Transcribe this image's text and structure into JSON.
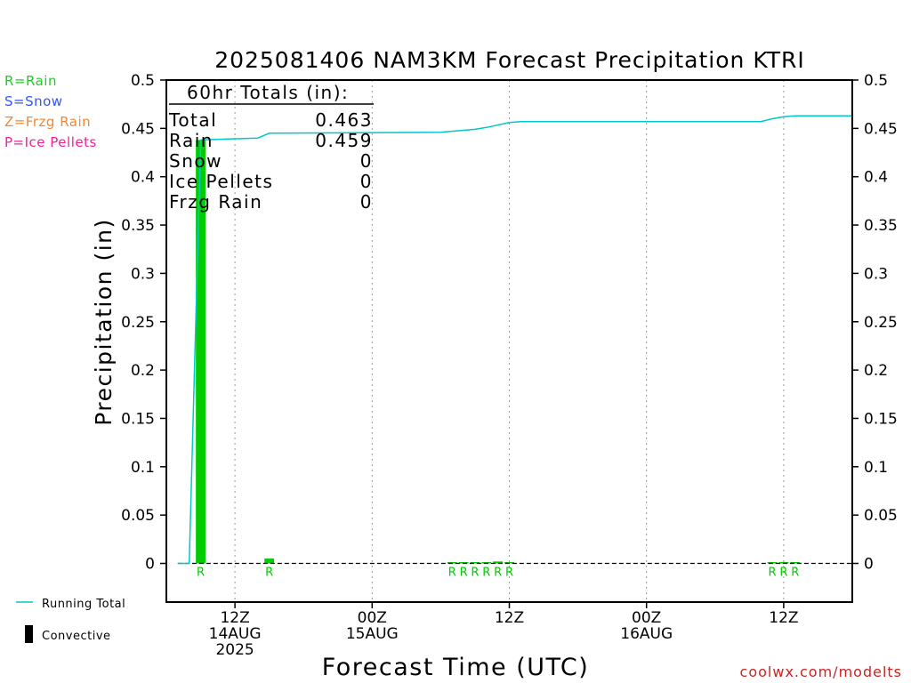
{
  "chart_data": {
    "type": "bar",
    "title": "2025081406 NAM3KM Forecast Precipitation KTRI",
    "xlabel": "Forecast Time (UTC)",
    "ylabel": "Precipitation (in)",
    "ylim": [
      -0.04,
      0.5
    ],
    "yticks": [
      0,
      0.05,
      0.1,
      0.15,
      0.2,
      0.25,
      0.3,
      0.35,
      0.4,
      0.45,
      0.5
    ],
    "ytick_labels": [
      "0",
      "0.05",
      "0.1",
      "0.15",
      "0.2",
      "0.25",
      "0.3",
      "0.35",
      "0.4",
      "0.45",
      "0.5"
    ],
    "xlim": [
      6,
      66
    ],
    "xticks": [
      {
        "hour": 12,
        "lines": [
          "12Z",
          "14AUG",
          "2025"
        ]
      },
      {
        "hour": 24,
        "lines": [
          "00Z",
          "15AUG"
        ]
      },
      {
        "hour": 36,
        "lines": [
          "12Z"
        ]
      },
      {
        "hour": 48,
        "lines": [
          "00Z",
          "16AUG"
        ]
      },
      {
        "hour": 60,
        "lines": [
          "12Z"
        ]
      }
    ],
    "grid": "dotted vertical at tick hours",
    "bar_color": "#00cc00",
    "running_total_color": "#00c8c8",
    "hourly_precip": [
      {
        "hour": 9,
        "value": 0.438,
        "ptype": "R"
      },
      {
        "hour": 15,
        "value": 0.005,
        "ptype": "R"
      },
      {
        "hour": 31,
        "value": 0.0005,
        "ptype": "R"
      },
      {
        "hour": 32,
        "value": 0.0005,
        "ptype": "R"
      },
      {
        "hour": 33,
        "value": 0.0008,
        "ptype": "R"
      },
      {
        "hour": 34,
        "value": 0.001,
        "ptype": "R"
      },
      {
        "hour": 35,
        "value": 0.002,
        "ptype": "R"
      },
      {
        "hour": 36,
        "value": 0.001,
        "ptype": "R"
      },
      {
        "hour": 59,
        "value": 0.001,
        "ptype": "R"
      },
      {
        "hour": 60,
        "value": 0.0015,
        "ptype": "R"
      },
      {
        "hour": 61,
        "value": 0.001,
        "ptype": "R"
      }
    ],
    "running_total": [
      {
        "hour": 7,
        "value": 0
      },
      {
        "hour": 8,
        "value": 0
      },
      {
        "hour": 9,
        "value": 0.438
      },
      {
        "hour": 14,
        "value": 0.44
      },
      {
        "hour": 15,
        "value": 0.445
      },
      {
        "hour": 30,
        "value": 0.446
      },
      {
        "hour": 33,
        "value": 0.449
      },
      {
        "hour": 34,
        "value": 0.451
      },
      {
        "hour": 36,
        "value": 0.456
      },
      {
        "hour": 37,
        "value": 0.457
      },
      {
        "hour": 58,
        "value": 0.457
      },
      {
        "hour": 59,
        "value": 0.46
      },
      {
        "hour": 60,
        "value": 0.462
      },
      {
        "hour": 61,
        "value": 0.463
      },
      {
        "hour": 66,
        "value": 0.463
      }
    ],
    "totals_box": {
      "heading": "60hr Totals (in):",
      "rows": [
        {
          "label": "Total",
          "value": "0.463"
        },
        {
          "label": "Rain",
          "value": "0.459"
        },
        {
          "label": "Snow",
          "value": "0"
        },
        {
          "label": "Ice Pellets",
          "value": "0"
        },
        {
          "label": "Frzg Rain",
          "value": "0"
        }
      ]
    },
    "ptype_legend": [
      {
        "text": "R=Rain",
        "color": "#22cc22"
      },
      {
        "text": "S=Snow",
        "color": "#3355ff"
      },
      {
        "text": "Z=Frzg Rain",
        "color": "#ee8833"
      },
      {
        "text": "P=Ice Pellets",
        "color": "#ee2299"
      }
    ],
    "legend": [
      {
        "key": "running",
        "text": "Running Total",
        "color": "#00c8c8"
      },
      {
        "key": "convective",
        "text": "Convective",
        "color": "#000000"
      }
    ],
    "credit": "coolwx.com/modelts",
    "credit_color": "#cc2222"
  }
}
